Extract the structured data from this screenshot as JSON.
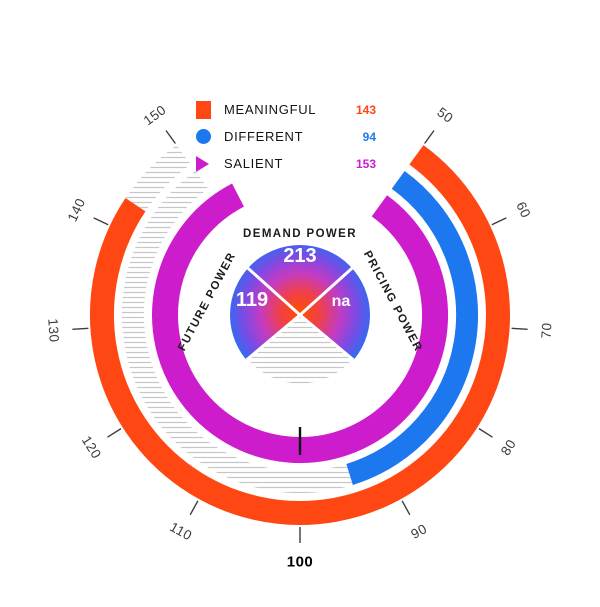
{
  "chart_data": {
    "type": "radial-gauge",
    "title": "",
    "scale": {
      "min": 50,
      "max": 150,
      "ticks": [
        50,
        60,
        70,
        80,
        90,
        100,
        110,
        120,
        130,
        140,
        150
      ],
      "baseline_tick": 100,
      "start_angle_deg": 36,
      "end_angle_deg": 324,
      "direction": "clockwise",
      "gap_position": "top"
    },
    "rings": [
      {
        "name": "MEANINGFUL",
        "value": 143,
        "color": "#FF4713",
        "marker": "square",
        "outer_r": 210,
        "inner_r": 186
      },
      {
        "name": "DIFFERENT",
        "value": 94,
        "color": "#1D78F0",
        "marker": "circle",
        "outer_r": 178,
        "inner_r": 156
      },
      {
        "name": "SALIENT",
        "value": 153,
        "color": "#CC1CCC",
        "marker": "triangle",
        "outer_r": 148,
        "inner_r": 122
      }
    ],
    "benchmark_value": 100,
    "center_pie": {
      "sectors": [
        {
          "label": "DEMAND POWER",
          "value": "213",
          "position": "top"
        },
        {
          "label": "PRICING POWER",
          "value": "na",
          "position": "right"
        },
        {
          "label": "FUTURE POWER",
          "value": "119",
          "position": "left"
        }
      ],
      "empty_sector": {
        "position": "bottom",
        "style": "hatched"
      },
      "gradient": [
        "#FF4E00",
        "#F04048",
        "#C23BC4",
        "#7A4BE4",
        "#2E6CF2"
      ]
    },
    "hatch_color": "#c6c6c6"
  },
  "legend": {
    "items": [
      {
        "label": "MEANINGFUL",
        "value": "143",
        "color": "#FF4713",
        "marker": "square"
      },
      {
        "label": "DIFFERENT",
        "value": "94",
        "color": "#1D78F0",
        "marker": "circle"
      },
      {
        "label": "SALIENT",
        "value": "153",
        "color": "#CC1CCC",
        "marker": "triangle"
      }
    ]
  }
}
